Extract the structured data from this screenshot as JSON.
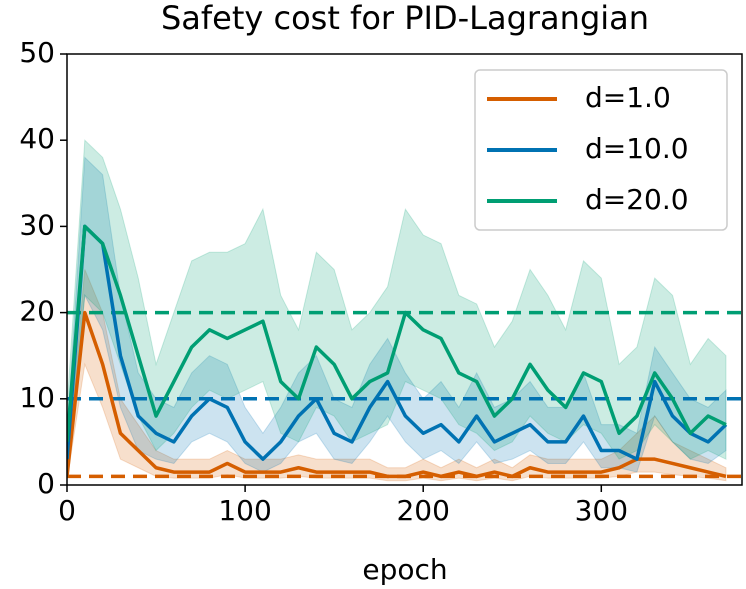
{
  "chart_data": {
    "type": "line",
    "title": "Safety cost for PID-Lagrangian",
    "x_label": "epoch",
    "x": [
      0,
      10,
      20,
      30,
      40,
      50,
      60,
      70,
      80,
      90,
      100,
      110,
      120,
      130,
      140,
      150,
      160,
      170,
      180,
      190,
      200,
      210,
      220,
      230,
      240,
      250,
      260,
      270,
      280,
      290,
      300,
      310,
      320,
      330,
      340,
      350,
      360,
      370
    ],
    "xlim": [
      0,
      379
    ],
    "xticks": [
      0,
      100,
      200,
      300
    ],
    "ylim": [
      0,
      50
    ],
    "yticks": [
      0,
      10,
      20,
      30,
      40,
      50
    ],
    "legend": "upper right",
    "series": [
      {
        "name": "d=1.0",
        "color": "#d55e00",
        "threshold": 1,
        "values": [
          1,
          20,
          14,
          6,
          4,
          2,
          1.5,
          1.5,
          1.5,
          2.5,
          1.5,
          1.5,
          1.5,
          2,
          1.5,
          1.5,
          1.5,
          1.5,
          1,
          1,
          1.5,
          1,
          1.5,
          1,
          1.5,
          1,
          2,
          1.5,
          1.5,
          1.5,
          1.5,
          2,
          3,
          3,
          2.5,
          2,
          1.5,
          1
        ],
        "lower": [
          0.5,
          14,
          9,
          3,
          2,
          1,
          0.8,
          0.8,
          0.8,
          1.2,
          0.8,
          0.8,
          0.8,
          1,
          0.8,
          0.8,
          0.8,
          0.8,
          0.5,
          0.5,
          0.8,
          0.5,
          0.8,
          0.5,
          0.8,
          0.5,
          1,
          0.8,
          0.8,
          0.8,
          0.8,
          1,
          1.5,
          1.5,
          1.2,
          1,
          0.8,
          0.5
        ],
        "upper": [
          2,
          25,
          20,
          10,
          7,
          4,
          3,
          3,
          3,
          4,
          3,
          3,
          3,
          3.5,
          3,
          3,
          3,
          3,
          2,
          2,
          3,
          2,
          3,
          2,
          3,
          2,
          3.5,
          3,
          3,
          3,
          3,
          4,
          6,
          8,
          5,
          4,
          3,
          2
        ]
      },
      {
        "name": "d=10.0",
        "color": "#0072b2",
        "threshold": 10,
        "values": [
          3,
          30,
          28,
          15,
          8,
          6,
          5,
          8,
          10,
          9,
          5,
          3,
          5,
          8,
          10,
          6,
          5,
          9,
          12,
          8,
          6,
          7,
          5,
          8,
          5,
          6,
          7,
          5,
          5,
          8,
          4,
          4,
          3,
          12,
          8,
          6,
          5,
          7
        ],
        "lower": [
          1,
          22,
          18,
          9,
          4,
          3,
          2.5,
          5,
          6,
          5,
          2.5,
          1.5,
          2.5,
          5,
          6,
          3,
          2.5,
          5,
          8,
          5,
          3,
          4,
          2.5,
          5,
          2.5,
          3,
          4,
          2.5,
          2.5,
          5,
          2,
          2,
          1.5,
          8,
          5,
          3,
          2.5,
          4
        ],
        "upper": [
          6,
          38,
          36,
          22,
          13,
          10,
          9,
          13,
          15,
          14,
          9,
          6,
          9,
          13,
          15,
          10,
          9,
          14,
          17,
          13,
          10,
          12,
          9,
          13,
          9,
          10,
          12,
          9,
          9,
          13,
          7,
          7,
          6,
          16,
          13,
          10,
          9,
          11
        ]
      },
      {
        "name": "d=20.0",
        "color": "#009e73",
        "threshold": 20,
        "values": [
          5,
          30,
          28,
          22,
          15,
          8,
          12,
          16,
          18,
          17,
          18,
          19,
          12,
          10,
          16,
          14,
          10,
          12,
          13,
          20,
          18,
          17,
          13,
          12,
          8,
          10,
          14,
          11,
          9,
          13,
          12,
          6,
          8,
          13,
          10,
          6,
          8,
          7
        ],
        "lower": [
          2,
          22,
          20,
          14,
          8,
          4,
          6,
          9,
          11,
          10,
          11,
          12,
          6,
          5,
          9,
          8,
          5,
          6,
          7,
          12,
          11,
          10,
          7,
          6,
          4,
          5,
          8,
          6,
          5,
          7,
          6,
          3,
          4,
          7,
          5,
          3,
          4,
          3
        ],
        "upper": [
          9,
          40,
          38,
          32,
          24,
          14,
          20,
          26,
          27,
          27,
          28,
          32,
          22,
          18,
          27,
          25,
          18,
          20,
          23,
          32,
          29,
          28,
          22,
          21,
          16,
          19,
          25,
          22,
          18,
          26,
          24,
          14,
          16,
          24,
          22,
          14,
          17,
          15
        ]
      }
    ]
  }
}
